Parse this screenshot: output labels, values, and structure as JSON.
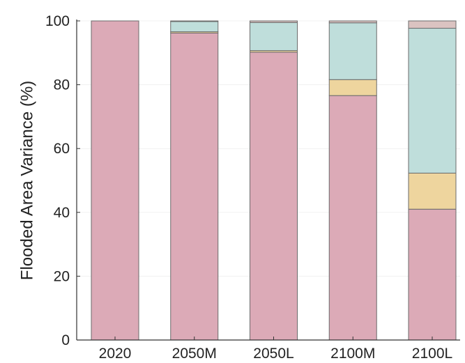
{
  "chart_data": {
    "type": "bar",
    "stacked": true,
    "title": "",
    "xlabel": "",
    "ylabel": "Flooded Area Variance (%)",
    "ylim": [
      0,
      100
    ],
    "yticks": [
      0,
      20,
      40,
      60,
      80,
      100
    ],
    "grid": true,
    "categories": [
      "2020",
      "2050M",
      "2050L",
      "2100M",
      "2100L"
    ],
    "series": [
      {
        "values": [
          100,
          96.2,
          90.2,
          76.6,
          41.0
        ],
        "color": "#dcaab7"
      },
      {
        "values": [
          0,
          0.4,
          0.5,
          5.0,
          11.3
        ],
        "color": "#eed59e"
      },
      {
        "values": [
          0,
          3.2,
          8.8,
          17.8,
          45.4
        ],
        "color": "#bfdedb"
      },
      {
        "values": [
          0,
          0.2,
          0.5,
          0.6,
          2.3
        ],
        "color": "#dbc3c1"
      }
    ]
  }
}
